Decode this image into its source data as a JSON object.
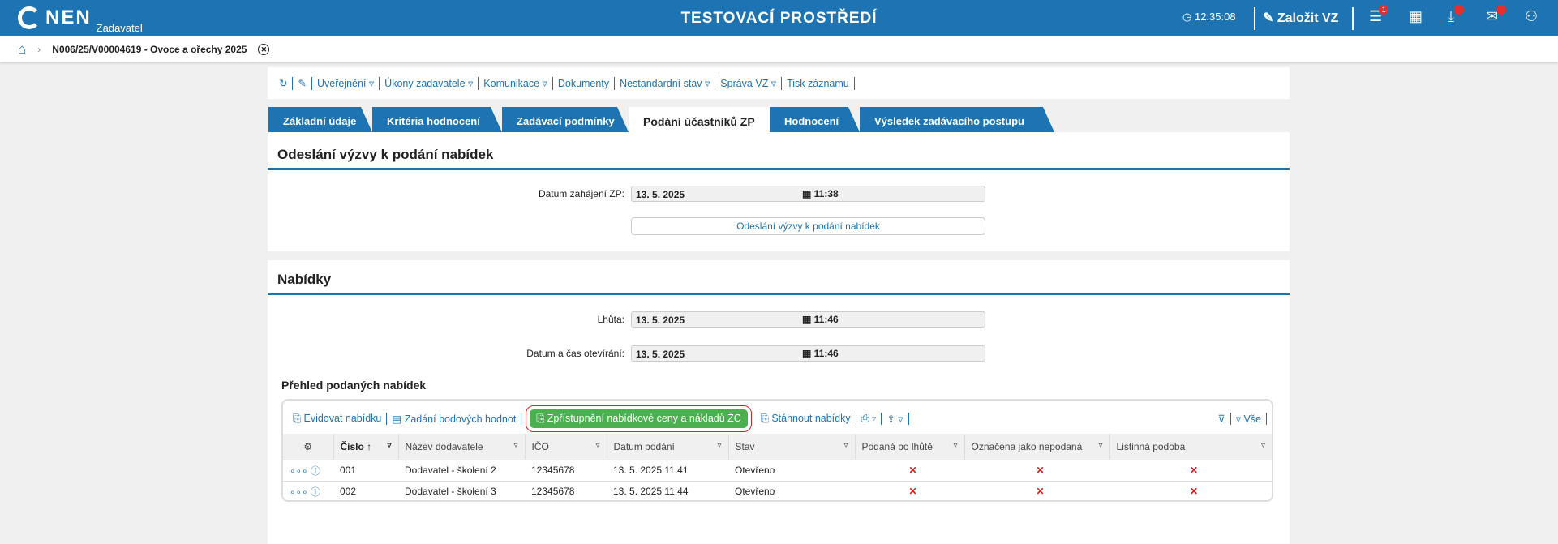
{
  "header": {
    "logo": "NEN",
    "logo_sub": "Zadavatel",
    "title": "TESTOVACÍ PROSTŘEDÍ",
    "time": "12:35:08",
    "create_label": "Založit VZ",
    "menu_badge": "1"
  },
  "breadcrumb": {
    "item": "N006/25/V00004619 - Ovoce a ořechy 2025"
  },
  "toolbar": {
    "items": [
      "Uveřejnění ▿",
      "Úkony zadavatele ▿",
      "Komunikace ▿",
      "Dokumenty",
      "Nestandardní stav ▿",
      "Správa VZ ▿",
      "Tisk záznamu"
    ]
  },
  "tabs": [
    "Základní údaje",
    "Kritéria hodnocení",
    "Zadávací podmínky",
    "Podání účastníků ZP",
    "Hodnocení",
    "Výsledek zadávacího postupu"
  ],
  "section1": {
    "title": "Odeslání výzvy k podání nabídek",
    "date_label": "Datum zahájení ZP:",
    "date": "13. 5. 2025",
    "time": "11:38",
    "button": "Odeslání výzvy k podání nabídek"
  },
  "section2": {
    "title": "Nabídky",
    "deadline_label": "Lhůta:",
    "deadline_date": "13. 5. 2025",
    "deadline_time": "11:46",
    "open_label": "Datum a čas otevírání:",
    "open_date": "13. 5. 2025",
    "open_time": "11:46",
    "overview_title": "Přehled podaných nabídek",
    "table_toolbar": {
      "evidovat": "Evidovat nabídku",
      "zadani": "Zadání bodových hodnot",
      "zpristupneni": "Zpřístupnění nabídkové ceny a nákladů ŽC",
      "stahnout": "Stáhnout nabídky",
      "all": "Vše"
    },
    "columns": [
      "Číslo",
      "Název dodavatele",
      "IČO",
      "Datum podání",
      "Stav",
      "Podaná po lhůtě",
      "Označena jako nepodaná",
      "Listinná podoba"
    ],
    "rows": [
      [
        "001",
        "Dodavatel - školení 2",
        "12345678",
        "13. 5. 2025 11:41",
        "Otevřeno",
        "✕",
        "✕",
        "✕"
      ],
      [
        "002",
        "Dodavatel - školení 3",
        "12345678",
        "13. 5. 2025 11:44",
        "Otevřeno",
        "✕",
        "✕",
        "✕"
      ]
    ]
  }
}
